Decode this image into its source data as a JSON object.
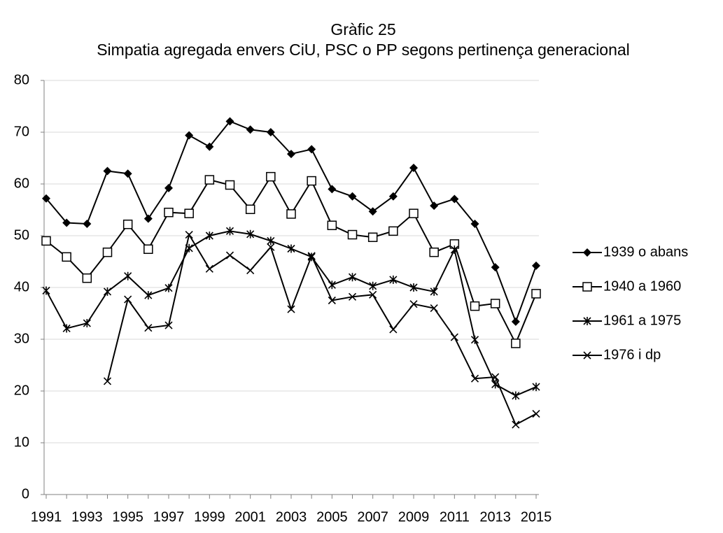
{
  "chart_data": {
    "type": "line",
    "title": "Gràfic 25",
    "subtitle": "Simpatia agregada envers CiU, PSC o PP segons pertinença generacional",
    "categories": [
      "1991",
      null,
      "1993",
      null,
      "1995",
      null,
      "1997",
      null,
      "1999",
      null,
      "2001",
      null,
      "2003",
      null,
      "2005",
      null,
      "2007",
      null,
      "2009",
      null,
      "2011",
      null,
      "2013",
      null,
      "2015"
    ],
    "series": [
      {
        "name": "1939 o abans",
        "color": "#000000",
        "marker": "diamond",
        "values": [
          57.2,
          52.5,
          52.3,
          62.5,
          62,
          53.3,
          59.2,
          69.4,
          67.2,
          72.1,
          70.5,
          70,
          65.8,
          66.7,
          59,
          57.6,
          54.7,
          57.6,
          63.1,
          55.8,
          57.1,
          52.3,
          43.9,
          33.4,
          44.2
        ]
      },
      {
        "name": "1940 a 1960",
        "color": "#000000",
        "marker": "square",
        "values": [
          49,
          45.9,
          41.8,
          46.8,
          52.2,
          47.4,
          54.5,
          54.3,
          60.8,
          59.8,
          55.1,
          61.4,
          54.2,
          60.6,
          52,
          50.2,
          49.7,
          50.9,
          54.3,
          46.8,
          48.4,
          36.4,
          36.9,
          29.2,
          38.8
        ]
      },
      {
        "name": "1961 a 1975",
        "color": "#000000",
        "marker": "asterisk",
        "values": [
          39.4,
          32.1,
          33.1,
          39.2,
          42.2,
          38.5,
          39.9,
          47.6,
          50,
          50.9,
          50.3,
          49,
          47.5,
          45.9,
          40.5,
          42,
          40.3,
          41.5,
          40,
          39.2,
          47.3,
          29.9,
          21.3,
          19.1,
          20.8
        ]
      },
      {
        "name": "1976 i dp",
        "color": "#000000",
        "marker": "x",
        "values": [
          null,
          null,
          null,
          21.9,
          37.7,
          32.2,
          32.7,
          50.2,
          43.6,
          46.2,
          43.3,
          47.8,
          35.8,
          46.1,
          37.5,
          38.2,
          38.6,
          31.9,
          36.8,
          36,
          30.4,
          22.4,
          22.7,
          13.5,
          15.6
        ]
      }
    ],
    "ylim": [
      0,
      80
    ],
    "yticks": [
      0,
      10,
      20,
      30,
      40,
      50,
      60,
      70,
      80
    ],
    "grid": true,
    "legend": "right"
  }
}
